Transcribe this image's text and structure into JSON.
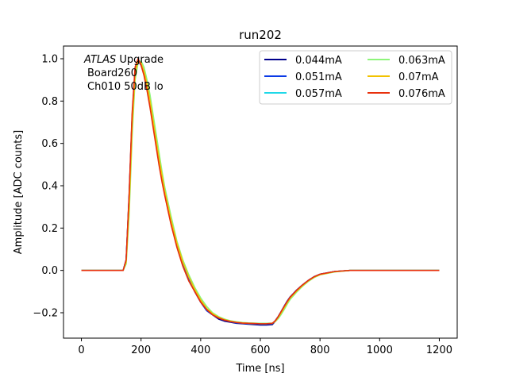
{
  "chart_data": {
    "type": "line",
    "title": "run202",
    "xlabel": "Time [ns]",
    "ylabel": "Amplitude [ADC counts]",
    "xlim": [
      -60,
      1260
    ],
    "ylim": [
      -0.32,
      1.06
    ],
    "xticks": [
      0,
      200,
      400,
      600,
      800,
      1000,
      1200
    ],
    "xtick_labels": [
      "0",
      "200",
      "400",
      "600",
      "800",
      "1000",
      "1200"
    ],
    "yticks": [
      -0.2,
      0.0,
      0.2,
      0.4,
      0.6,
      0.8,
      1.0
    ],
    "ytick_labels": [
      "−0.2",
      "0.0",
      "0.2",
      "0.4",
      "0.6",
      "0.8",
      "1.0"
    ],
    "grid": false,
    "legend_position": "top-right",
    "legend_columns": 2,
    "annotation": {
      "italic_part": "ATLAS",
      "line1_rest": " Upgrade",
      "line2": "Board260",
      "line3": "Ch010 50dB lo"
    },
    "x": [
      0,
      100,
      140,
      150,
      160,
      170,
      180,
      190,
      200,
      210,
      220,
      230,
      240,
      250,
      260,
      270,
      280,
      300,
      320,
      340,
      360,
      380,
      400,
      420,
      440,
      460,
      480,
      500,
      520,
      540,
      560,
      580,
      600,
      620,
      640,
      650,
      660,
      670,
      680,
      690,
      700,
      720,
      740,
      760,
      780,
      800,
      850,
      900,
      1000,
      1100,
      1200
    ],
    "series": [
      {
        "name": "0.044mA",
        "color": "#00008b",
        "values": [
          0.0,
          0.0,
          0.0,
          0.05,
          0.35,
          0.72,
          0.95,
          0.99,
          0.97,
          0.93,
          0.86,
          0.78,
          0.69,
          0.6,
          0.51,
          0.43,
          0.36,
          0.23,
          0.12,
          0.03,
          -0.04,
          -0.1,
          -0.15,
          -0.19,
          -0.21,
          -0.23,
          -0.24,
          -0.245,
          -0.25,
          -0.252,
          -0.254,
          -0.256,
          -0.258,
          -0.258,
          -0.256,
          -0.24,
          -0.22,
          -0.195,
          -0.17,
          -0.145,
          -0.125,
          -0.095,
          -0.07,
          -0.048,
          -0.03,
          -0.018,
          -0.005,
          0.0,
          0.0,
          0.0,
          0.0
        ]
      },
      {
        "name": "0.051mA",
        "color": "#0a3ae6",
        "values": [
          0.0,
          0.0,
          0.0,
          0.05,
          0.35,
          0.72,
          0.95,
          0.99,
          0.97,
          0.93,
          0.86,
          0.78,
          0.69,
          0.6,
          0.51,
          0.43,
          0.36,
          0.23,
          0.12,
          0.03,
          -0.04,
          -0.1,
          -0.15,
          -0.19,
          -0.21,
          -0.225,
          -0.235,
          -0.243,
          -0.248,
          -0.25,
          -0.252,
          -0.253,
          -0.254,
          -0.254,
          -0.252,
          -0.237,
          -0.217,
          -0.193,
          -0.168,
          -0.145,
          -0.125,
          -0.095,
          -0.07,
          -0.048,
          -0.03,
          -0.018,
          -0.005,
          0.0,
          0.0,
          0.0,
          0.0
        ]
      },
      {
        "name": "0.057mA",
        "color": "#1fd8e8",
        "values": [
          0.0,
          0.0,
          0.0,
          0.04,
          0.3,
          0.68,
          0.93,
          0.99,
          0.98,
          0.94,
          0.88,
          0.8,
          0.71,
          0.62,
          0.53,
          0.45,
          0.37,
          0.24,
          0.13,
          0.04,
          -0.03,
          -0.09,
          -0.14,
          -0.18,
          -0.205,
          -0.222,
          -0.233,
          -0.24,
          -0.245,
          -0.248,
          -0.25,
          -0.251,
          -0.252,
          -0.252,
          -0.25,
          -0.24,
          -0.222,
          -0.2,
          -0.176,
          -0.152,
          -0.13,
          -0.1,
          -0.073,
          -0.05,
          -0.032,
          -0.02,
          -0.006,
          0.0,
          0.0,
          0.0,
          0.0
        ]
      },
      {
        "name": "0.063mA",
        "color": "#8ef57a",
        "values": [
          0.0,
          0.0,
          0.0,
          0.03,
          0.26,
          0.63,
          0.9,
          0.98,
          0.99,
          0.96,
          0.9,
          0.83,
          0.74,
          0.65,
          0.56,
          0.47,
          0.39,
          0.26,
          0.14,
          0.05,
          -0.02,
          -0.08,
          -0.13,
          -0.17,
          -0.2,
          -0.218,
          -0.23,
          -0.238,
          -0.243,
          -0.246,
          -0.248,
          -0.249,
          -0.25,
          -0.25,
          -0.249,
          -0.242,
          -0.228,
          -0.208,
          -0.185,
          -0.16,
          -0.137,
          -0.105,
          -0.077,
          -0.053,
          -0.034,
          -0.021,
          -0.007,
          0.0,
          0.0,
          0.0,
          0.0
        ]
      },
      {
        "name": "0.07mA",
        "color": "#f2c200",
        "values": [
          0.0,
          0.0,
          0.0,
          0.04,
          0.3,
          0.68,
          0.93,
          0.99,
          0.98,
          0.94,
          0.88,
          0.8,
          0.71,
          0.62,
          0.53,
          0.45,
          0.37,
          0.24,
          0.13,
          0.04,
          -0.03,
          -0.09,
          -0.14,
          -0.18,
          -0.205,
          -0.222,
          -0.233,
          -0.24,
          -0.245,
          -0.248,
          -0.25,
          -0.251,
          -0.252,
          -0.252,
          -0.25,
          -0.24,
          -0.222,
          -0.2,
          -0.176,
          -0.152,
          -0.13,
          -0.1,
          -0.073,
          -0.05,
          -0.032,
          -0.02,
          -0.006,
          0.0,
          0.0,
          0.0,
          0.0
        ]
      },
      {
        "name": "0.076mA",
        "color": "#e8300c",
        "values": [
          0.0,
          0.0,
          0.0,
          0.05,
          0.36,
          0.74,
          0.96,
          1.0,
          0.97,
          0.92,
          0.85,
          0.77,
          0.68,
          0.59,
          0.5,
          0.42,
          0.35,
          0.22,
          0.11,
          0.02,
          -0.05,
          -0.1,
          -0.15,
          -0.185,
          -0.21,
          -0.225,
          -0.235,
          -0.242,
          -0.246,
          -0.249,
          -0.25,
          -0.251,
          -0.252,
          -0.252,
          -0.25,
          -0.238,
          -0.218,
          -0.194,
          -0.17,
          -0.147,
          -0.126,
          -0.096,
          -0.07,
          -0.048,
          -0.03,
          -0.018,
          -0.005,
          0.0,
          0.0,
          0.0,
          0.0
        ]
      }
    ]
  }
}
